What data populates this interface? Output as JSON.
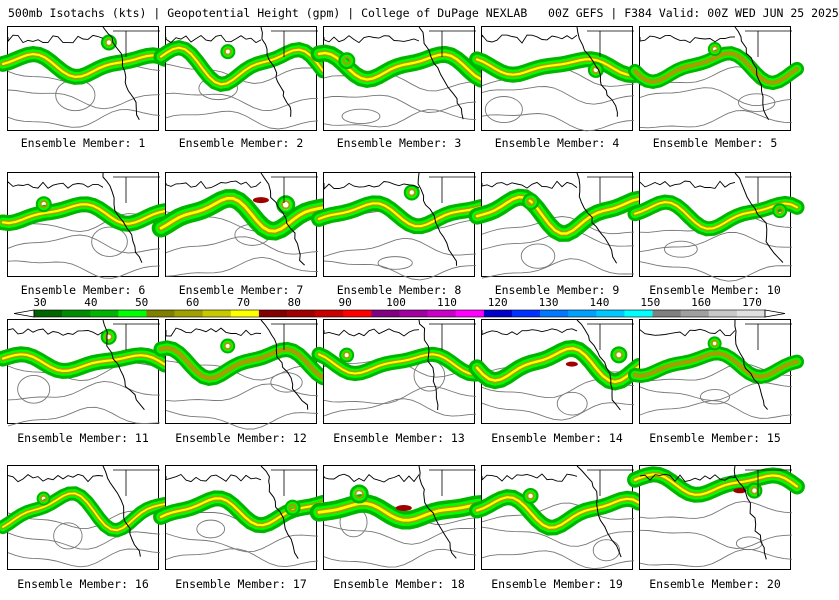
{
  "header": {
    "title": "500mb Isotachs (kts) | Geopotential Height (gpm) | College of DuPage NEXLAB   00Z GEFS | F384 Valid: 00Z WED JUN 25 2025"
  },
  "members": [
    {
      "label": "Ensemble Member: 1",
      "jet": 0.55,
      "max": 0.45
    },
    {
      "label": "Ensemble Member: 2",
      "jet": 0.5,
      "max": 0.4
    },
    {
      "label": "Ensemble Member: 3",
      "jet": 0.6,
      "max": 0.4
    },
    {
      "label": "Ensemble Member: 4",
      "jet": 0.55,
      "max": 0.5
    },
    {
      "label": "Ensemble Member: 5",
      "jet": 0.45,
      "max": 0.3
    },
    {
      "label": "Ensemble Member: 6",
      "jet": 0.55,
      "max": 0.5
    },
    {
      "label": "Ensemble Member: 7",
      "jet": 0.7,
      "max": 0.8
    },
    {
      "label": "Ensemble Member: 8",
      "jet": 0.55,
      "max": 0.45
    },
    {
      "label": "Ensemble Member: 9",
      "jet": 0.6,
      "max": 0.55
    },
    {
      "label": "Ensemble Member: 10",
      "jet": 0.5,
      "max": 0.45
    },
    {
      "label": "Ensemble Member: 11",
      "jet": 0.55,
      "max": 0.45
    },
    {
      "label": "Ensemble Member: 12",
      "jet": 0.5,
      "max": 0.3
    },
    {
      "label": "Ensemble Member: 13",
      "jet": 0.5,
      "max": 0.45
    },
    {
      "label": "Ensemble Member: 14",
      "jet": 0.6,
      "max": 0.6
    },
    {
      "label": "Ensemble Member: 15",
      "jet": 0.45,
      "max": 0.35
    },
    {
      "label": "Ensemble Member: 16",
      "jet": 0.45,
      "max": 0.4
    },
    {
      "label": "Ensemble Member: 17",
      "jet": 0.55,
      "max": 0.5
    },
    {
      "label": "Ensemble Member: 18",
      "jet": 0.7,
      "max": 0.8
    },
    {
      "label": "Ensemble Member: 19",
      "jet": 0.55,
      "max": 0.45
    },
    {
      "label": "Ensemble Member: 20",
      "jet": 0.55,
      "max": 0.65
    }
  ],
  "colorbar": {
    "ticks": [
      "30",
      "40",
      "50",
      "60",
      "70",
      "80",
      "90",
      "100",
      "110",
      "120",
      "130",
      "140",
      "150",
      "160",
      "170"
    ],
    "colors": [
      "#006400",
      "#008c00",
      "#00b400",
      "#00ff00",
      "#808000",
      "#a0a000",
      "#c8c800",
      "#ffff00",
      "#800000",
      "#a00000",
      "#c80000",
      "#ff0000",
      "#800080",
      "#a000a0",
      "#c800c8",
      "#ff00ff",
      "#0000c8",
      "#0032ff",
      "#0078ff",
      "#00a0ff",
      "#00c8ff",
      "#00ffff",
      "#808080",
      "#a0a0a0",
      "#c8c8c8",
      "#e0e0e0"
    ]
  }
}
